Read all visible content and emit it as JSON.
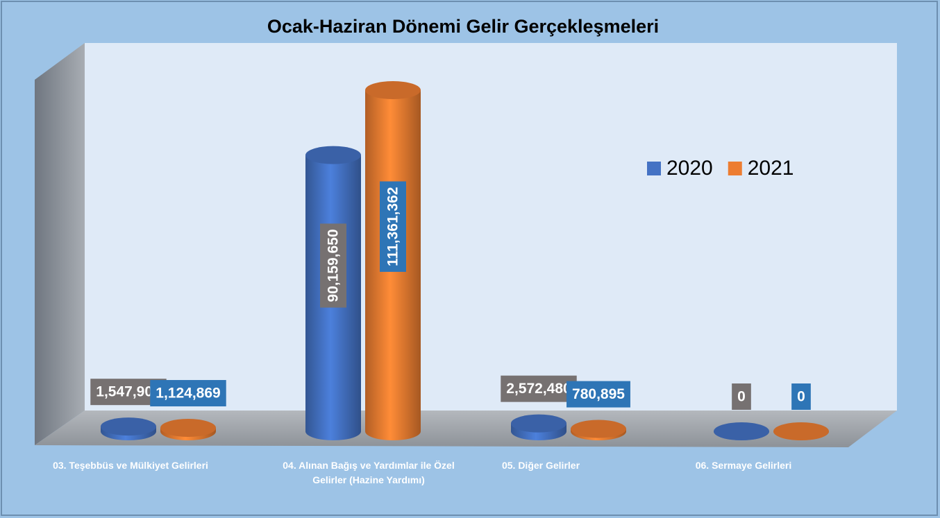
{
  "chart_data": {
    "type": "bar",
    "title": "Ocak-Haziran Dönemi Gelir Gerçekleşmeleri",
    "categories": [
      "03. Teşebbüs ve Mülkiyet Gelirleri",
      "04. Alınan Bağış ve Yardımlar ile Özel Gelirler (Hazine Yardımı)",
      "05. Diğer Gelirler",
      "06. Sermaye Gelirleri"
    ],
    "series": [
      {
        "name": "2020",
        "color": "#4472c4",
        "values": [
          1547906,
          90159650,
          2572480,
          0
        ],
        "value_labels": [
          "1,547,906",
          "90,159,650",
          "2,572,480",
          "0"
        ]
      },
      {
        "name": "2021",
        "color": "#ed7d31",
        "values": [
          1124869,
          111361362,
          780895,
          0
        ],
        "value_labels": [
          "1,124,869",
          "111,361,362",
          "780,895",
          "0"
        ]
      }
    ],
    "legend": "upper right"
  }
}
